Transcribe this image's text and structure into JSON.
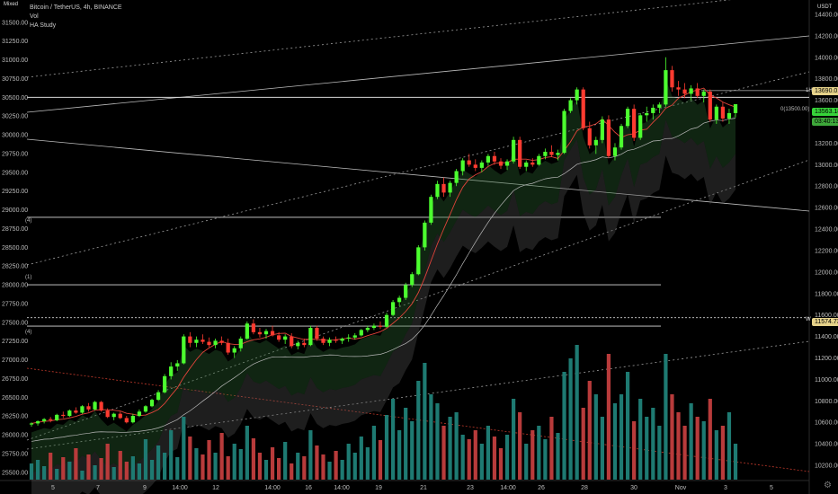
{
  "header": {
    "symbol_line": "Bitcoin / TetherUS, 4h, BINANCE",
    "indicator_1": "Vol",
    "indicator_2": "HA Study",
    "mixed_label": "Mixed"
  },
  "right_axis": {
    "unit": "USDT",
    "ticks": [
      "14400.00",
      "14200.00",
      "14000.00",
      "13800.00",
      "13600.00",
      "13400.00",
      "13200.00",
      "13000.00",
      "12800.00",
      "12600.00",
      "12400.00",
      "12200.00",
      "12000.00",
      "11800.00",
      "11600.00",
      "11400.00",
      "11200.00",
      "11000.00",
      "10800.00",
      "10600.00",
      "10400.00",
      "10200.00"
    ]
  },
  "left_axis": {
    "ticks": [
      "31500.00",
      "31250.00",
      "31000.00",
      "30750.00",
      "30500.00",
      "30250.00",
      "30000.00",
      "29750.00",
      "29500.00",
      "29250.00",
      "29000.00",
      "28750.00",
      "28500.00",
      "28250.00",
      "28000.00",
      "27750.00",
      "27500.00",
      "27250.00",
      "27000.00",
      "26750.00",
      "26500.00",
      "26250.00",
      "26000.00",
      "25750.00",
      "25500.00"
    ]
  },
  "x_axis": {
    "ticks": [
      "5",
      "7",
      "9",
      "14:00",
      "12",
      "14:00",
      "16",
      "14:00",
      "19",
      "21",
      "23",
      "14:00",
      "26",
      "28",
      "30",
      "Nov",
      "3",
      "5"
    ]
  },
  "price_tags": {
    "last_price": "13563.18",
    "countdown": "03:40:13",
    "level_1h": "13690.01",
    "label_1h": "1H",
    "level_w": "11574.73",
    "label_w": "W",
    "level_mid_text": "0(13500.00)"
  },
  "level_labels": {
    "l1": "(4)",
    "l2": "(1)",
    "l3": "(4)"
  },
  "colors": {
    "bull": "#4cff2f",
    "bear": "#ff3b30",
    "vol_bull": "#1e7a72",
    "vol_bear": "#b83b3b",
    "last_price_bg": "#37d43a",
    "countdown_bg": "#3ea83a",
    "tag_bg": "#e6d28a"
  },
  "chart_data": {
    "type": "candlestick",
    "timeframe": "4h",
    "y_range_right": [
      10100,
      14500
    ],
    "y_range_left": [
      25450,
      31750
    ],
    "candles": [
      [
        10580,
        10600,
        10560,
        10590
      ],
      [
        10590,
        10620,
        10570,
        10610
      ],
      [
        10610,
        10640,
        10590,
        10630
      ],
      [
        10630,
        10650,
        10600,
        10620
      ],
      [
        10620,
        10680,
        10610,
        10670
      ],
      [
        10670,
        10700,
        10640,
        10660
      ],
      [
        10660,
        10720,
        10650,
        10710
      ],
      [
        10710,
        10740,
        10680,
        10690
      ],
      [
        10690,
        10760,
        10680,
        10750
      ],
      [
        10750,
        10780,
        10700,
        10720
      ],
      [
        10720,
        10800,
        10710,
        10790
      ],
      [
        10790,
        10800,
        10700,
        10710
      ],
      [
        10710,
        10730,
        10640,
        10650
      ],
      [
        10650,
        10690,
        10620,
        10680
      ],
      [
        10680,
        10700,
        10630,
        10640
      ],
      [
        10640,
        10660,
        10590,
        10600
      ],
      [
        10600,
        10680,
        10590,
        10660
      ],
      [
        10660,
        10720,
        10650,
        10700
      ],
      [
        10700,
        10760,
        10690,
        10750
      ],
      [
        10750,
        10820,
        10740,
        10810
      ],
      [
        10810,
        10900,
        10800,
        10880
      ],
      [
        10880,
        11050,
        10870,
        11030
      ],
      [
        11030,
        11160,
        11000,
        11120
      ],
      [
        11120,
        11180,
        11080,
        11150
      ],
      [
        11150,
        11420,
        11140,
        11400
      ],
      [
        11400,
        11440,
        11300,
        11340
      ],
      [
        11340,
        11400,
        11300,
        11370
      ],
      [
        11370,
        11420,
        11330,
        11350
      ],
      [
        11350,
        11390,
        11300,
        11320
      ],
      [
        11320,
        11380,
        11290,
        11360
      ],
      [
        11360,
        11400,
        11320,
        11340
      ],
      [
        11340,
        11380,
        11230,
        11250
      ],
      [
        11250,
        11310,
        11200,
        11290
      ],
      [
        11290,
        11400,
        11260,
        11380
      ],
      [
        11380,
        11540,
        11370,
        11520
      ],
      [
        11520,
        11560,
        11420,
        11440
      ],
      [
        11440,
        11480,
        11390,
        11420
      ],
      [
        11420,
        11470,
        11380,
        11450
      ],
      [
        11450,
        11500,
        11400,
        11410
      ],
      [
        11410,
        11440,
        11350,
        11370
      ],
      [
        11370,
        11420,
        11330,
        11400
      ],
      [
        11400,
        11430,
        11290,
        11310
      ],
      [
        11310,
        11360,
        11280,
        11340
      ],
      [
        11340,
        11380,
        11300,
        11320
      ],
      [
        11320,
        11500,
        11310,
        11480
      ],
      [
        11480,
        11500,
        11360,
        11380
      ],
      [
        11380,
        11400,
        11320,
        11340
      ],
      [
        11340,
        11390,
        11310,
        11370
      ],
      [
        11370,
        11400,
        11340,
        11360
      ],
      [
        11360,
        11390,
        11330,
        11380
      ],
      [
        11380,
        11420,
        11350,
        11390
      ],
      [
        11390,
        11430,
        11370,
        11410
      ],
      [
        11410,
        11470,
        11400,
        11460
      ],
      [
        11460,
        11500,
        11440,
        11480
      ],
      [
        11480,
        11520,
        11460,
        11500
      ],
      [
        11500,
        11540,
        11470,
        11490
      ],
      [
        11490,
        11620,
        11480,
        11600
      ],
      [
        11600,
        11740,
        11590,
        11720
      ],
      [
        11720,
        11780,
        11680,
        11760
      ],
      [
        11760,
        11900,
        11740,
        11880
      ],
      [
        11880,
        12000,
        11860,
        11980
      ],
      [
        11980,
        12250,
        11970,
        12230
      ],
      [
        12230,
        12480,
        12200,
        12460
      ],
      [
        12460,
        12720,
        12440,
        12700
      ],
      [
        12700,
        12850,
        12680,
        12820
      ],
      [
        12820,
        12880,
        12700,
        12740
      ],
      [
        12740,
        12850,
        12700,
        12830
      ],
      [
        12830,
        12960,
        12800,
        12940
      ],
      [
        12940,
        13060,
        12900,
        13040
      ],
      [
        13040,
        13100,
        12980,
        13000
      ],
      [
        13000,
        13050,
        12940,
        12970
      ],
      [
        12970,
        13040,
        12930,
        13020
      ],
      [
        13020,
        13100,
        12990,
        13080
      ],
      [
        13080,
        13120,
        13000,
        13030
      ],
      [
        13030,
        13060,
        12960,
        12990
      ],
      [
        12990,
        13050,
        12950,
        13030
      ],
      [
        13030,
        13260,
        13010,
        13230
      ],
      [
        13230,
        13260,
        12960,
        12980
      ],
      [
        12980,
        13040,
        12940,
        13020
      ],
      [
        13020,
        13060,
        12980,
        13000
      ],
      [
        13000,
        13100,
        12990,
        13080
      ],
      [
        13080,
        13150,
        13050,
        13120
      ],
      [
        13120,
        13180,
        13070,
        13090
      ],
      [
        13090,
        13140,
        13040,
        13110
      ],
      [
        13110,
        13520,
        13100,
        13500
      ],
      [
        13500,
        13620,
        13480,
        13600
      ],
      [
        13600,
        13720,
        13560,
        13700
      ],
      [
        13700,
        13720,
        13320,
        13340
      ],
      [
        13340,
        13400,
        13150,
        13180
      ],
      [
        13180,
        13260,
        13100,
        13230
      ],
      [
        13230,
        13450,
        13200,
        13420
      ],
      [
        13420,
        13460,
        13060,
        13080
      ],
      [
        13080,
        13200,
        13040,
        13160
      ],
      [
        13160,
        13380,
        13140,
        13360
      ],
      [
        13360,
        13540,
        13340,
        13520
      ],
      [
        13520,
        13560,
        13220,
        13250
      ],
      [
        13250,
        13480,
        13230,
        13460
      ],
      [
        13460,
        13540,
        13400,
        13480
      ],
      [
        13480,
        13560,
        13420,
        13530
      ],
      [
        13530,
        13580,
        13480,
        13560
      ],
      [
        13560,
        14000,
        13540,
        13880
      ],
      [
        13880,
        13920,
        13680,
        13720
      ],
      [
        13720,
        13780,
        13640,
        13700
      ],
      [
        13700,
        13760,
        13620,
        13660
      ],
      [
        13660,
        13740,
        13600,
        13710
      ],
      [
        13710,
        13760,
        13620,
        13640
      ],
      [
        13640,
        13700,
        13580,
        13680
      ],
      [
        13680,
        13700,
        13400,
        13420
      ],
      [
        13420,
        13560,
        13380,
        13540
      ],
      [
        13540,
        13580,
        13400,
        13430
      ],
      [
        13430,
        13520,
        13380,
        13480
      ],
      [
        13480,
        13560,
        13440,
        13563
      ]
    ],
    "volume": [
      18,
      22,
      15,
      30,
      12,
      25,
      20,
      35,
      10,
      28,
      16,
      24,
      40,
      14,
      32,
      20,
      26,
      18,
      45,
      22,
      38,
      30,
      55,
      25,
      70,
      48,
      35,
      28,
      44,
      30,
      52,
      26,
      40,
      34,
      60,
      46,
      30,
      22,
      36,
      24,
      42,
      18,
      30,
      26,
      55,
      38,
      28,
      20,
      32,
      22,
      40,
      30,
      48,
      36,
      60,
      44,
      72,
      90,
      55,
      80,
      65,
      110,
      130,
      95,
      85,
      60,
      70,
      75,
      50,
      45,
      55,
      40,
      60,
      48,
      35,
      50,
      90,
      75,
      40,
      55,
      60,
      45,
      70,
      52,
      120,
      135,
      150,
      80,
      110,
      95,
      70,
      140,
      85,
      95,
      120,
      65,
      90,
      70,
      80,
      60,
      140,
      95,
      75,
      60,
      85,
      70,
      65,
      90,
      55,
      60,
      75,
      40
    ],
    "levels_left": [
      {
        "label": "(4)",
        "value": 28900
      },
      {
        "label": "(1)",
        "value": 28000
      },
      {
        "label": "(4)",
        "value": 27450
      },
      {
        "label": "0(13500.00)",
        "value": 30500
      }
    ]
  }
}
